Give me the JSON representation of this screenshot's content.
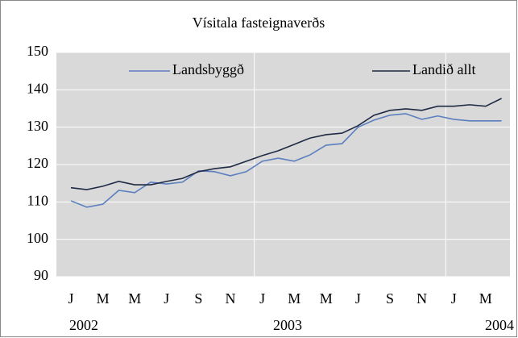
{
  "chart_data": {
    "type": "line",
    "title": "Vísitala fasteignaverðs",
    "categories": [
      "J",
      null,
      "M",
      null,
      "M",
      null,
      "J",
      null,
      "S",
      null,
      "N",
      null,
      "J",
      null,
      "M",
      null,
      "M",
      null,
      "J",
      null,
      "S",
      null,
      "N",
      null,
      "J",
      null,
      "M",
      null
    ],
    "year_labels": [
      "2002",
      "2003",
      "2004"
    ],
    "series": [
      {
        "name": "Landsbyggð",
        "color": "#5b7fbf",
        "values": [
          110.3,
          108.6,
          109.4,
          113.1,
          112.5,
          115.3,
          114.8,
          115.3,
          118.3,
          118.1,
          117.0,
          118.1,
          120.9,
          121.7,
          120.9,
          122.6,
          125.2,
          125.6,
          130.0,
          131.9,
          133.2,
          133.6,
          132.1,
          133.0,
          132.1,
          131.7,
          131.7,
          131.7
        ]
      },
      {
        "name": "Landið allt",
        "color": "#1f2a44",
        "values": [
          113.8,
          113.3,
          114.2,
          115.5,
          114.6,
          114.6,
          115.5,
          116.3,
          118.1,
          118.9,
          119.4,
          120.9,
          122.4,
          123.7,
          125.4,
          127.1,
          128.0,
          128.4,
          130.4,
          133.2,
          134.5,
          134.9,
          134.5,
          135.6,
          135.6,
          136.0,
          135.6,
          137.7
        ]
      }
    ],
    "ylim": [
      90,
      150
    ],
    "yticks": [
      90,
      100,
      110,
      120,
      130,
      140,
      150
    ],
    "grid": true,
    "legend": "top"
  }
}
